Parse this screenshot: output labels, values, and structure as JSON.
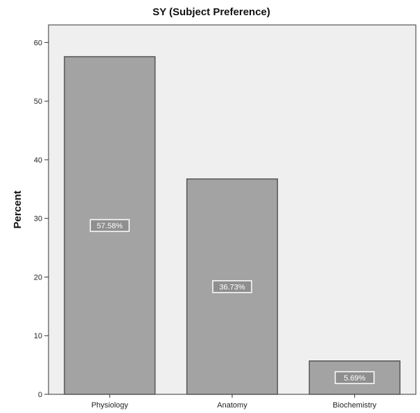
{
  "chart_data": {
    "type": "bar",
    "title": "SY (Subject Preference)",
    "xlabel": "",
    "ylabel": "Percent",
    "categories": [
      "Physiology",
      "Anatomy",
      "Biochemistry"
    ],
    "values": [
      57.58,
      36.73,
      5.69
    ],
    "data_labels": [
      "57.58%",
      "36.73%",
      "5.69%"
    ],
    "ylim": [
      0,
      63
    ],
    "yticks": [
      0,
      10,
      20,
      30,
      40,
      50,
      60
    ],
    "grid": false,
    "legend": "none",
    "colors": {
      "plot_background": "#efefef",
      "bar_fill": "#a3a3a3",
      "bar_stroke": "#555555",
      "label_box": "#8f8f8f"
    }
  }
}
